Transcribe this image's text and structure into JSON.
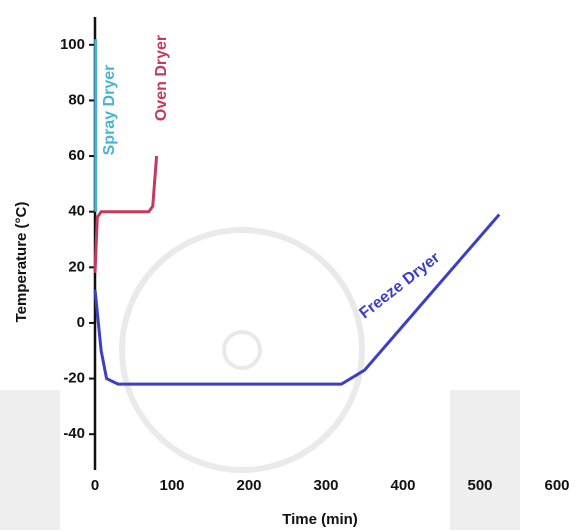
{
  "chart_data": {
    "type": "line",
    "x_label": "Time (min)",
    "y_label": "Temperature (°C)",
    "xlim": [
      0,
      600
    ],
    "ylim": [
      -50,
      110
    ],
    "xticks": [
      0,
      100,
      200,
      300,
      400,
      500,
      600
    ],
    "yticks": [
      -40,
      -20,
      0,
      20,
      40,
      60,
      80,
      100
    ],
    "series": [
      {
        "name": "Spray Dryer",
        "color": "#45b4d8",
        "x": [
          1,
          1
        ],
        "values": [
          40,
          102
        ]
      },
      {
        "name": "Oven Dryer",
        "color": "#c33a5c",
        "x": [
          0,
          3,
          8,
          70,
          75,
          80
        ],
        "values": [
          18,
          38,
          40,
          40,
          42,
          60
        ]
      },
      {
        "name": "Freeze Dryer",
        "color": "#3b3fc4",
        "x": [
          0,
          8,
          15,
          30,
          320,
          350,
          525
        ],
        "values": [
          12,
          -10,
          -20,
          -22,
          -22,
          -17,
          39
        ]
      }
    ]
  }
}
